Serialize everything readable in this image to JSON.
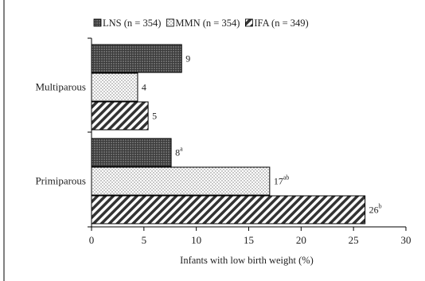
{
  "chart_data": {
    "type": "bar",
    "orientation": "horizontal",
    "xlabel": "Infants with low birth weight (%)",
    "xlim": [
      0,
      30
    ],
    "xticks": [
      "0",
      "5",
      "10",
      "15",
      "20",
      "25",
      "30"
    ],
    "grid": false,
    "legend_position": "top",
    "categories": [
      "Multiparous",
      "Primiparous"
    ],
    "series": [
      {
        "name": "LNS (n = 354)",
        "values": [
          8.6,
          7.6
        ],
        "labels": [
          "9",
          "8"
        ],
        "sup": [
          "",
          "a"
        ],
        "pattern": "dark-grid",
        "color": "#555555"
      },
      {
        "name": "MMN (n = 354)",
        "values": [
          4.4,
          17.0
        ],
        "labels": [
          "4",
          "17"
        ],
        "sup": [
          "",
          "ab"
        ],
        "pattern": "dots",
        "color": "#ffffff"
      },
      {
        "name": "IFA (n = 349)",
        "values": [
          5.4,
          26.1
        ],
        "labels": [
          "5",
          "26"
        ],
        "sup": [
          "",
          "b"
        ],
        "pattern": "diagonal-stripes",
        "color": "#333333"
      }
    ]
  }
}
